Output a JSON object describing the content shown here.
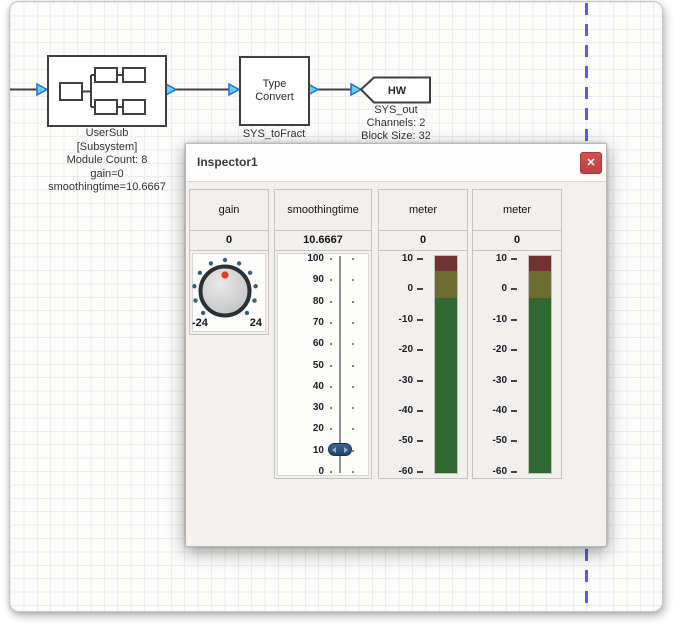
{
  "canvas": {
    "blocks": {
      "usersub": {
        "labels": [
          "UserSub",
          "[Subsystem]",
          "Module Count: 8",
          "gain=0",
          "smoothingtime=10.6667"
        ]
      },
      "type_convert": {
        "text": [
          "Type",
          "Convert"
        ],
        "label": "SYS_toFract"
      },
      "hw": {
        "text": "HW",
        "labels": [
          "SYS_out",
          "Channels: 2",
          "Block Size: 32"
        ]
      }
    }
  },
  "inspector": {
    "title": "Inspector1",
    "close": "✕",
    "panels": [
      {
        "label": "gain",
        "value": "0",
        "control": "knob",
        "min": "-24",
        "max": "24"
      },
      {
        "label": "smoothingtime",
        "value": "10.6667",
        "control": "slider",
        "ticks": [
          "100",
          "90",
          "80",
          "70",
          "60",
          "50",
          "40",
          "30",
          "20",
          "10",
          "0"
        ]
      },
      {
        "label": "meter",
        "value": "0",
        "control": "meter",
        "ticks": [
          "10",
          "0",
          "-10",
          "-20",
          "-30",
          "-40",
          "-50",
          "-60"
        ],
        "zones": [
          {
            "color": "#70312f",
            "h": 15
          },
          {
            "color": "#6f6c32",
            "h": 27
          },
          {
            "color": "#2f6931",
            "h": 175
          }
        ]
      },
      {
        "label": "meter",
        "value": "0",
        "control": "meter",
        "ticks": [
          "10",
          "0",
          "-10",
          "-20",
          "-30",
          "-40",
          "-50",
          "-60"
        ],
        "zones": [
          {
            "color": "#70312f",
            "h": 15
          },
          {
            "color": "#6f6c32",
            "h": 27
          },
          {
            "color": "#2f6931",
            "h": 175
          }
        ]
      }
    ]
  },
  "colors": {
    "guide_dash": "#5b5bf2",
    "port_fill": "#63d1f5",
    "port_stroke": "#2a6ad4",
    "meter_red": "#70312f",
    "meter_olive": "#6f6c32",
    "meter_green": "#2f6931",
    "knob_indicator": "#e63c1c",
    "close_button": "#c74948"
  }
}
